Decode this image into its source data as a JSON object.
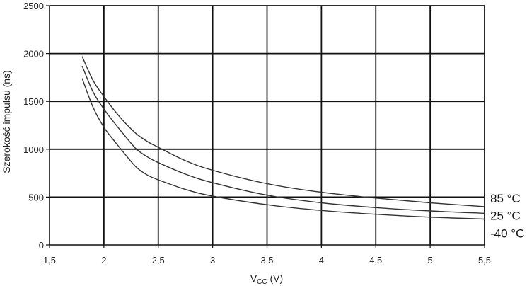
{
  "chart_data": {
    "type": "line",
    "xlabel": "V",
    "xlabel_sub": "CC",
    "xlabel_unit": " (V)",
    "ylabel": "Szerokość impulsu (ns)",
    "xlim": [
      1.5,
      5.5
    ],
    "ylim": [
      0,
      2500
    ],
    "x_ticks": [
      "1,5",
      "2",
      "2,5",
      "3",
      "3,5",
      "4",
      "4,5",
      "5",
      "5,5"
    ],
    "y_ticks": [
      "0",
      "500",
      "1000",
      "1500",
      "2000",
      "2500"
    ],
    "grid": true,
    "line_color": "#333333",
    "grid_color": "#111111",
    "series": [
      {
        "name": "85 °C",
        "x": [
          1.8,
          1.9,
          2.0,
          2.1,
          2.2,
          2.3,
          2.4,
          2.5,
          2.75,
          3.0,
          3.5,
          4.0,
          4.5,
          5.0,
          5.5
        ],
        "y": [
          1970,
          1720,
          1550,
          1400,
          1270,
          1160,
          1080,
          1020,
          880,
          780,
          640,
          550,
          490,
          440,
          400
        ]
      },
      {
        "name": "25 °C",
        "x": [
          1.8,
          1.9,
          2.0,
          2.1,
          2.2,
          2.3,
          2.4,
          2.5,
          2.75,
          3.0,
          3.5,
          4.0,
          4.5,
          5.0,
          5.5
        ],
        "y": [
          1870,
          1600,
          1420,
          1270,
          1130,
          1000,
          920,
          860,
          740,
          650,
          520,
          440,
          390,
          355,
          330
        ]
      },
      {
        "name": "-40 °C",
        "x": [
          1.8,
          1.9,
          2.0,
          2.1,
          2.2,
          2.3,
          2.4,
          2.5,
          2.75,
          3.0,
          3.5,
          4.0,
          4.5,
          5.0,
          5.5
        ],
        "y": [
          1740,
          1440,
          1230,
          1080,
          940,
          810,
          730,
          680,
          580,
          510,
          420,
          360,
          320,
          290,
          270
        ]
      }
    ]
  }
}
